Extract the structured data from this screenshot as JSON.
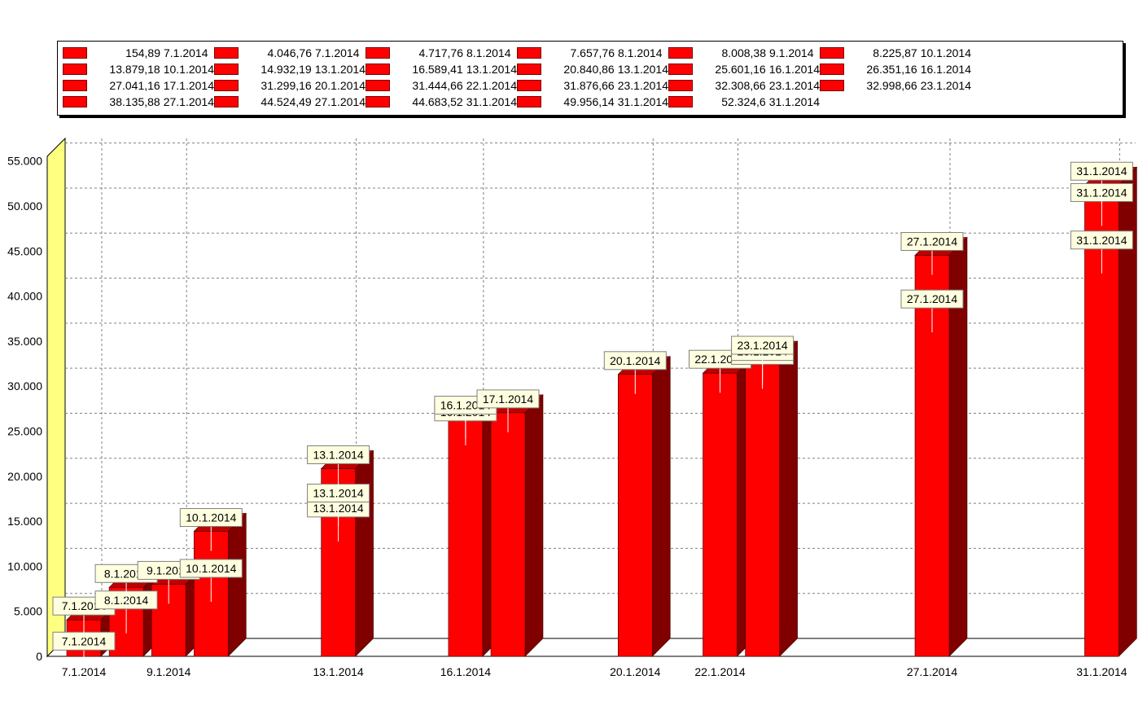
{
  "chart_data": {
    "type": "bar",
    "series": [
      {
        "color": "#ff0000",
        "points": [
          {
            "date": "7.1.2014",
            "value": 154.89,
            "value_label": "154,89"
          },
          {
            "date": "7.1.2014",
            "value": 4046.76,
            "value_label": "4.046,76"
          },
          {
            "date": "8.1.2014",
            "value": 4717.76,
            "value_label": "4.717,76"
          },
          {
            "date": "8.1.2014",
            "value": 7657.76,
            "value_label": "7.657,76"
          },
          {
            "date": "9.1.2014",
            "value": 8008.38,
            "value_label": "8.008,38"
          },
          {
            "date": "10.1.2014",
            "value": 8225.87,
            "value_label": "8.225,87"
          },
          {
            "date": "10.1.2014",
            "value": 13879.18,
            "value_label": "13.879,18"
          },
          {
            "date": "13.1.2014",
            "value": 14932.19,
            "value_label": "14.932,19"
          },
          {
            "date": "13.1.2014",
            "value": 16589.41,
            "value_label": "16.589,41"
          },
          {
            "date": "13.1.2014",
            "value": 20840.86,
            "value_label": "20.840,86"
          },
          {
            "date": "16.1.2014",
            "value": 25601.16,
            "value_label": "25.601,16"
          },
          {
            "date": "16.1.2014",
            "value": 26351.16,
            "value_label": "26.351,16"
          },
          {
            "date": "17.1.2014",
            "value": 27041.16,
            "value_label": "27.041,16"
          },
          {
            "date": "20.1.2014",
            "value": 31299.16,
            "value_label": "31.299,16"
          },
          {
            "date": "22.1.2014",
            "value": 31444.66,
            "value_label": "31.444,66"
          },
          {
            "date": "23.1.2014",
            "value": 31876.66,
            "value_label": "31.876,66"
          },
          {
            "date": "23.1.2014",
            "value": 32308.66,
            "value_label": "32.308,66"
          },
          {
            "date": "23.1.2014",
            "value": 32998.66,
            "value_label": "32.998,66"
          },
          {
            "date": "27.1.2014",
            "value": 38135.88,
            "value_label": "38.135,88"
          },
          {
            "date": "27.1.2014",
            "value": 44524.49,
            "value_label": "44.524,49"
          },
          {
            "date": "31.1.2014",
            "value": 44683.52,
            "value_label": "44.683,52"
          },
          {
            "date": "31.1.2014",
            "value": 49956.14,
            "value_label": "49.956,14"
          },
          {
            "date": "31.1.2014",
            "value": 52324.6,
            "value_label": "52.324,6"
          }
        ]
      }
    ],
    "bars": [
      {
        "date": "7.1.2014",
        "value": 4046.76
      },
      {
        "date": "8.1.2014",
        "value": 7657.76
      },
      {
        "date": "9.1.2014",
        "value": 8008.38
      },
      {
        "date": "10.1.2014",
        "value": 13879.18
      },
      {
        "date": "13.1.2014",
        "value": 20840.86
      },
      {
        "date": "16.1.2014",
        "value": 26351.16
      },
      {
        "date": "17.1.2014",
        "value": 27041.16
      },
      {
        "date": "20.1.2014",
        "value": 31299.16
      },
      {
        "date": "22.1.2014",
        "value": 31444.66
      },
      {
        "date": "23.1.2014",
        "value": 32998.66
      },
      {
        "date": "27.1.2014",
        "value": 44524.49
      },
      {
        "date": "31.1.2014",
        "value": 52324.6
      }
    ],
    "x_ticks": [
      "7.1.2014",
      "9.1.2014",
      "13.1.2014",
      "16.1.2014",
      "20.1.2014",
      "22.1.2014",
      "27.1.2014",
      "31.1.2014"
    ],
    "y_ticks": [
      "0",
      "5.000",
      "10.000",
      "15.000",
      "20.000",
      "25.000",
      "30.000",
      "35.000",
      "40.000",
      "45.000",
      "50.000",
      "55.000"
    ],
    "ylim": [
      0,
      57500
    ],
    "x_range_days": [
      7,
      31
    ],
    "grid": true,
    "legend_position": "top",
    "wall_color": "#ffff80",
    "bar_front_color": "#ff0000",
    "bar_top_color": "#c00000",
    "bar_side_color": "#800000",
    "label_bg_color": "#ffffe0"
  }
}
